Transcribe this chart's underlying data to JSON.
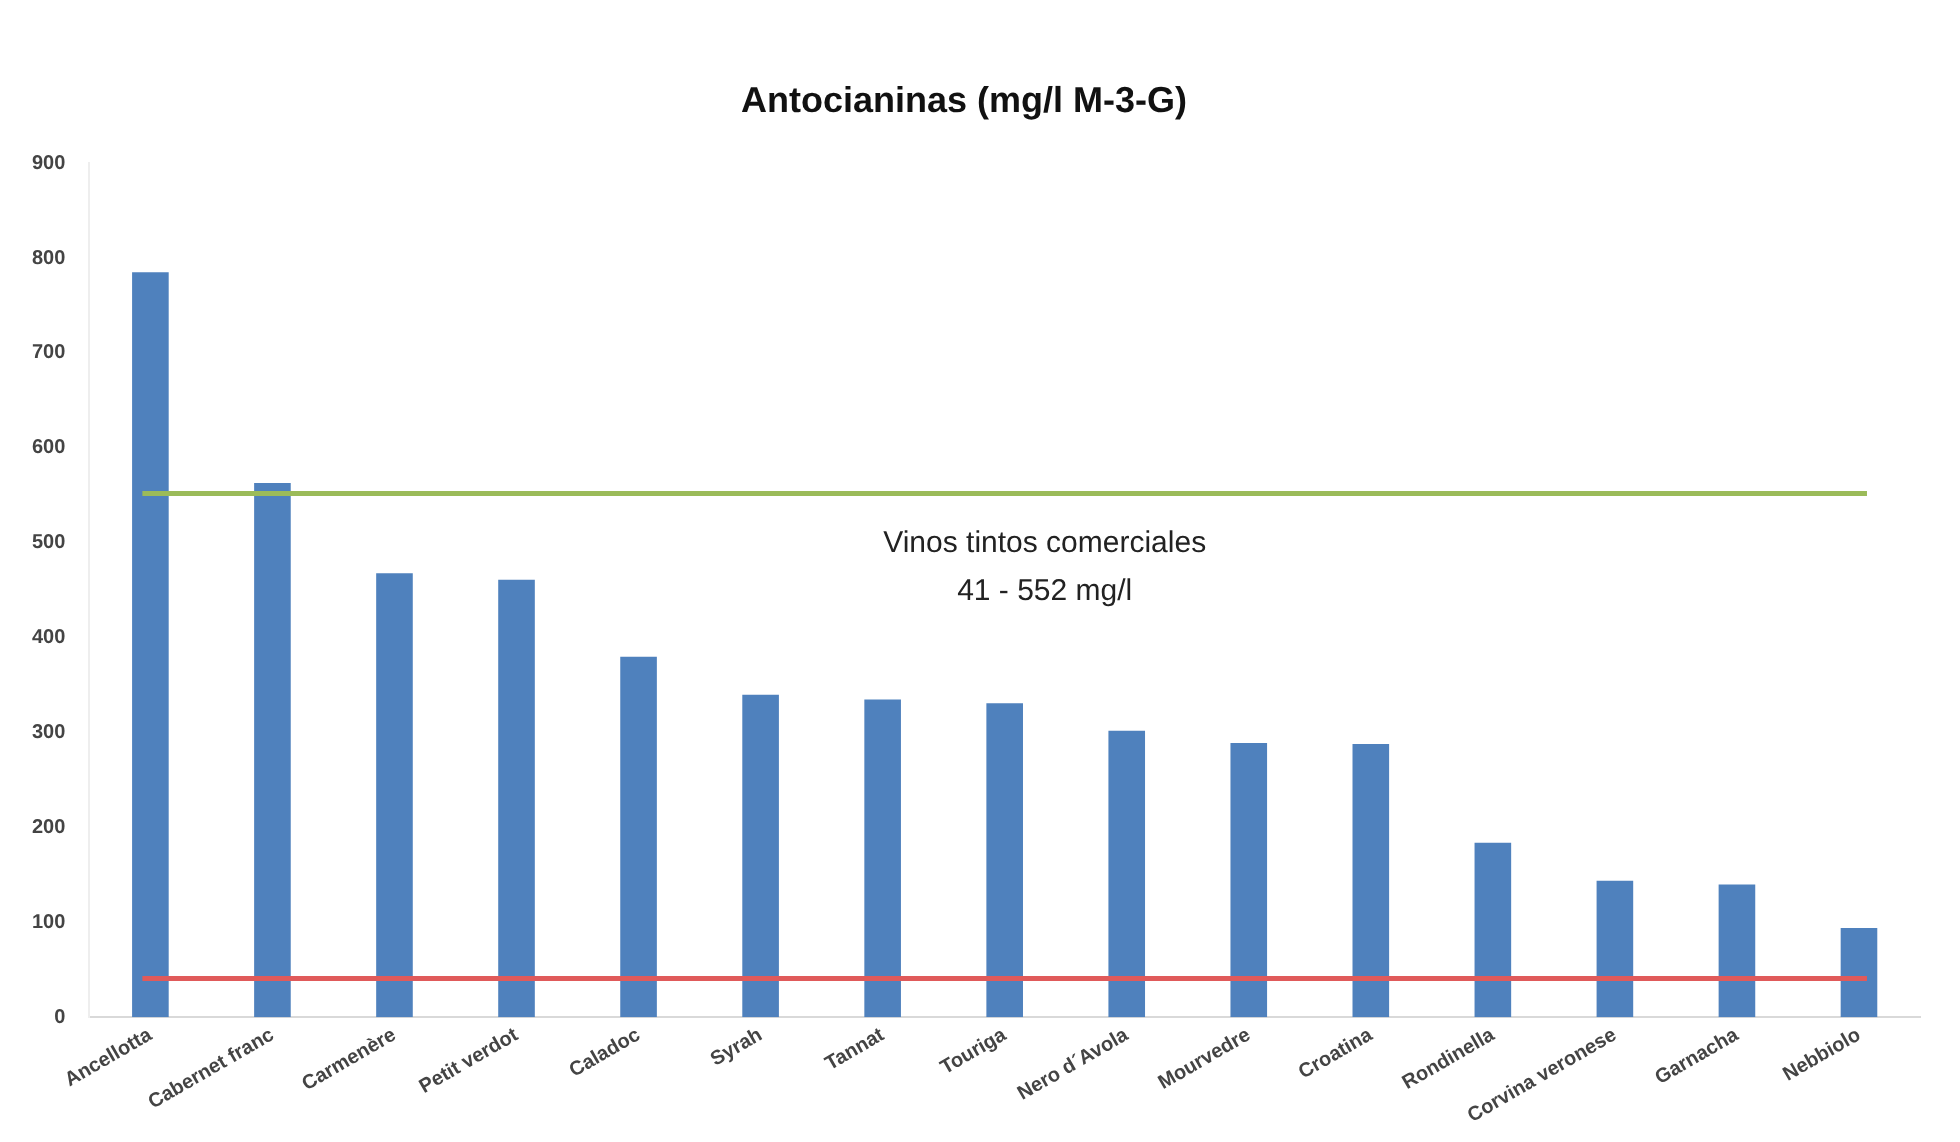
{
  "chart_data": {
    "type": "bar",
    "title": "Antocianinas (mg/l M-3-G)",
    "categories": [
      "Ancellotta",
      "Cabernet franc",
      "Carmenère",
      "Petit verdot",
      "Caladoc",
      "Syrah",
      "Tannat",
      "Touriga",
      "Nero d´Avola",
      "Mourvedre",
      "Croatina",
      "Rondinella",
      "Corvina veronese",
      "Garnacha",
      "Nebbiolo"
    ],
    "values": [
      785,
      563,
      468,
      461,
      380,
      340,
      335,
      331,
      302,
      289,
      288,
      184,
      144,
      140,
      94
    ],
    "color": "#4f81bd",
    "ylim": [
      0,
      900
    ],
    "yticks": [
      0,
      100,
      200,
      300,
      400,
      500,
      600,
      700,
      800,
      900
    ],
    "grid": false,
    "legend": false,
    "ref_lines": [
      {
        "axis": "y",
        "value": 552,
        "color": "#9bbb59"
      },
      {
        "axis": "y",
        "value": 41,
        "color": "#e05a5a"
      }
    ],
    "annotations": [
      "Vinos tintos comerciales\n41 - 552 mg/l"
    ]
  }
}
